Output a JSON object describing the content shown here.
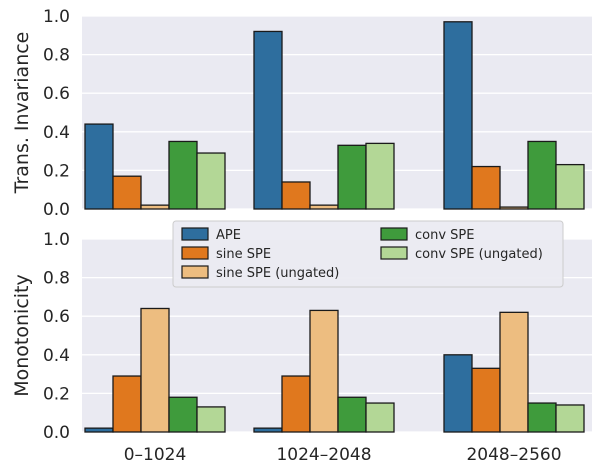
{
  "chart_data": [
    {
      "type": "bar",
      "categories": [
        "0–1024",
        "1024–2048",
        "2048–2560"
      ],
      "ylabel": "Trans. Invariance",
      "ylim": [
        0,
        1.0
      ],
      "yticks": [
        "0.0",
        "0.2",
        "0.4",
        "0.6",
        "0.8",
        "1.0"
      ],
      "grid": true,
      "series": [
        {
          "name": "APE",
          "color": "#2e6e9e",
          "values": [
            0.44,
            0.92,
            0.97
          ]
        },
        {
          "name": "sine SPE",
          "color": "#e0781e",
          "values": [
            0.17,
            0.14,
            0.22
          ]
        },
        {
          "name": "sine SPE (ungated)",
          "color": "#edbd80",
          "values": [
            0.02,
            0.02,
            0.01
          ]
        },
        {
          "name": "conv SPE",
          "color": "#3f9b3c",
          "values": [
            0.35,
            0.33,
            0.35
          ]
        },
        {
          "name": "conv SPE (ungated)",
          "color": "#b3d796",
          "values": [
            0.29,
            0.34,
            0.23
          ]
        }
      ]
    },
    {
      "type": "bar",
      "categories": [
        "0–1024",
        "1024–2048",
        "2048–2560"
      ],
      "ylabel": "Monotonicity",
      "ylim": [
        0,
        1.0
      ],
      "yticks": [
        "0.0",
        "0.2",
        "0.4",
        "0.6",
        "0.8",
        "1.0"
      ],
      "grid": true,
      "legend_position": "top-center",
      "series": [
        {
          "name": "APE",
          "color": "#2e6e9e",
          "values": [
            0.02,
            0.02,
            0.4
          ]
        },
        {
          "name": "sine SPE",
          "color": "#e0781e",
          "values": [
            0.29,
            0.29,
            0.33
          ]
        },
        {
          "name": "sine SPE (ungated)",
          "color": "#edbd80",
          "values": [
            0.64,
            0.63,
            0.62
          ]
        },
        {
          "name": "conv SPE",
          "color": "#3f9b3c",
          "values": [
            0.18,
            0.18,
            0.15
          ]
        },
        {
          "name": "conv SPE (ungated)",
          "color": "#b3d796",
          "values": [
            0.13,
            0.15,
            0.14
          ]
        }
      ]
    }
  ]
}
